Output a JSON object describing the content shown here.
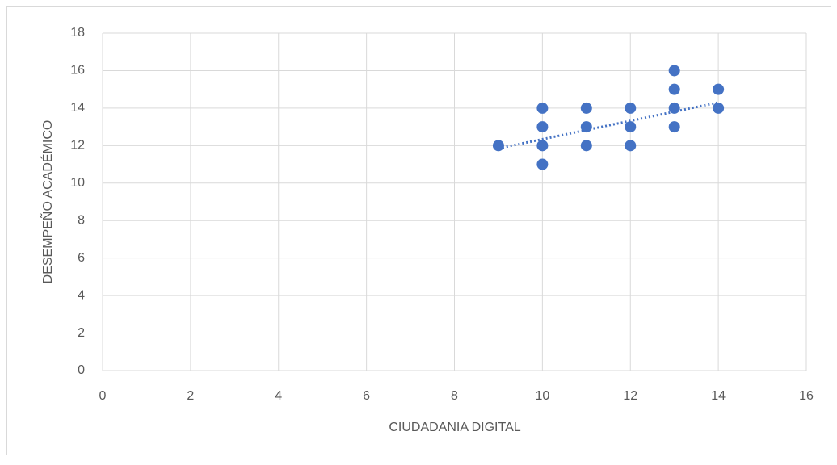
{
  "chart_data": {
    "type": "scatter",
    "xlabel": "CIUDADANIA DIGITAL",
    "ylabel": "DESEMPEÑO ACADÉMICO",
    "x": [
      9,
      10,
      10,
      10,
      10,
      11,
      11,
      11,
      12,
      12,
      12,
      13,
      13,
      13,
      13,
      14,
      14
    ],
    "values": [
      12,
      14,
      13,
      12,
      11,
      14,
      13,
      12,
      14,
      13,
      12,
      16,
      15,
      14,
      13,
      15,
      14
    ],
    "color": "#4472c4",
    "trendline": {
      "x": [
        9,
        14
      ],
      "y": [
        11.85,
        14.3
      ]
    },
    "xlim": [
      0,
      16
    ],
    "xticks": [
      0,
      2,
      4,
      6,
      8,
      10,
      12,
      14,
      16
    ],
    "ylim": [
      0,
      18
    ],
    "yticks": [
      0,
      2,
      4,
      6,
      8,
      10,
      12,
      14,
      16,
      18
    ],
    "grid": true
  }
}
